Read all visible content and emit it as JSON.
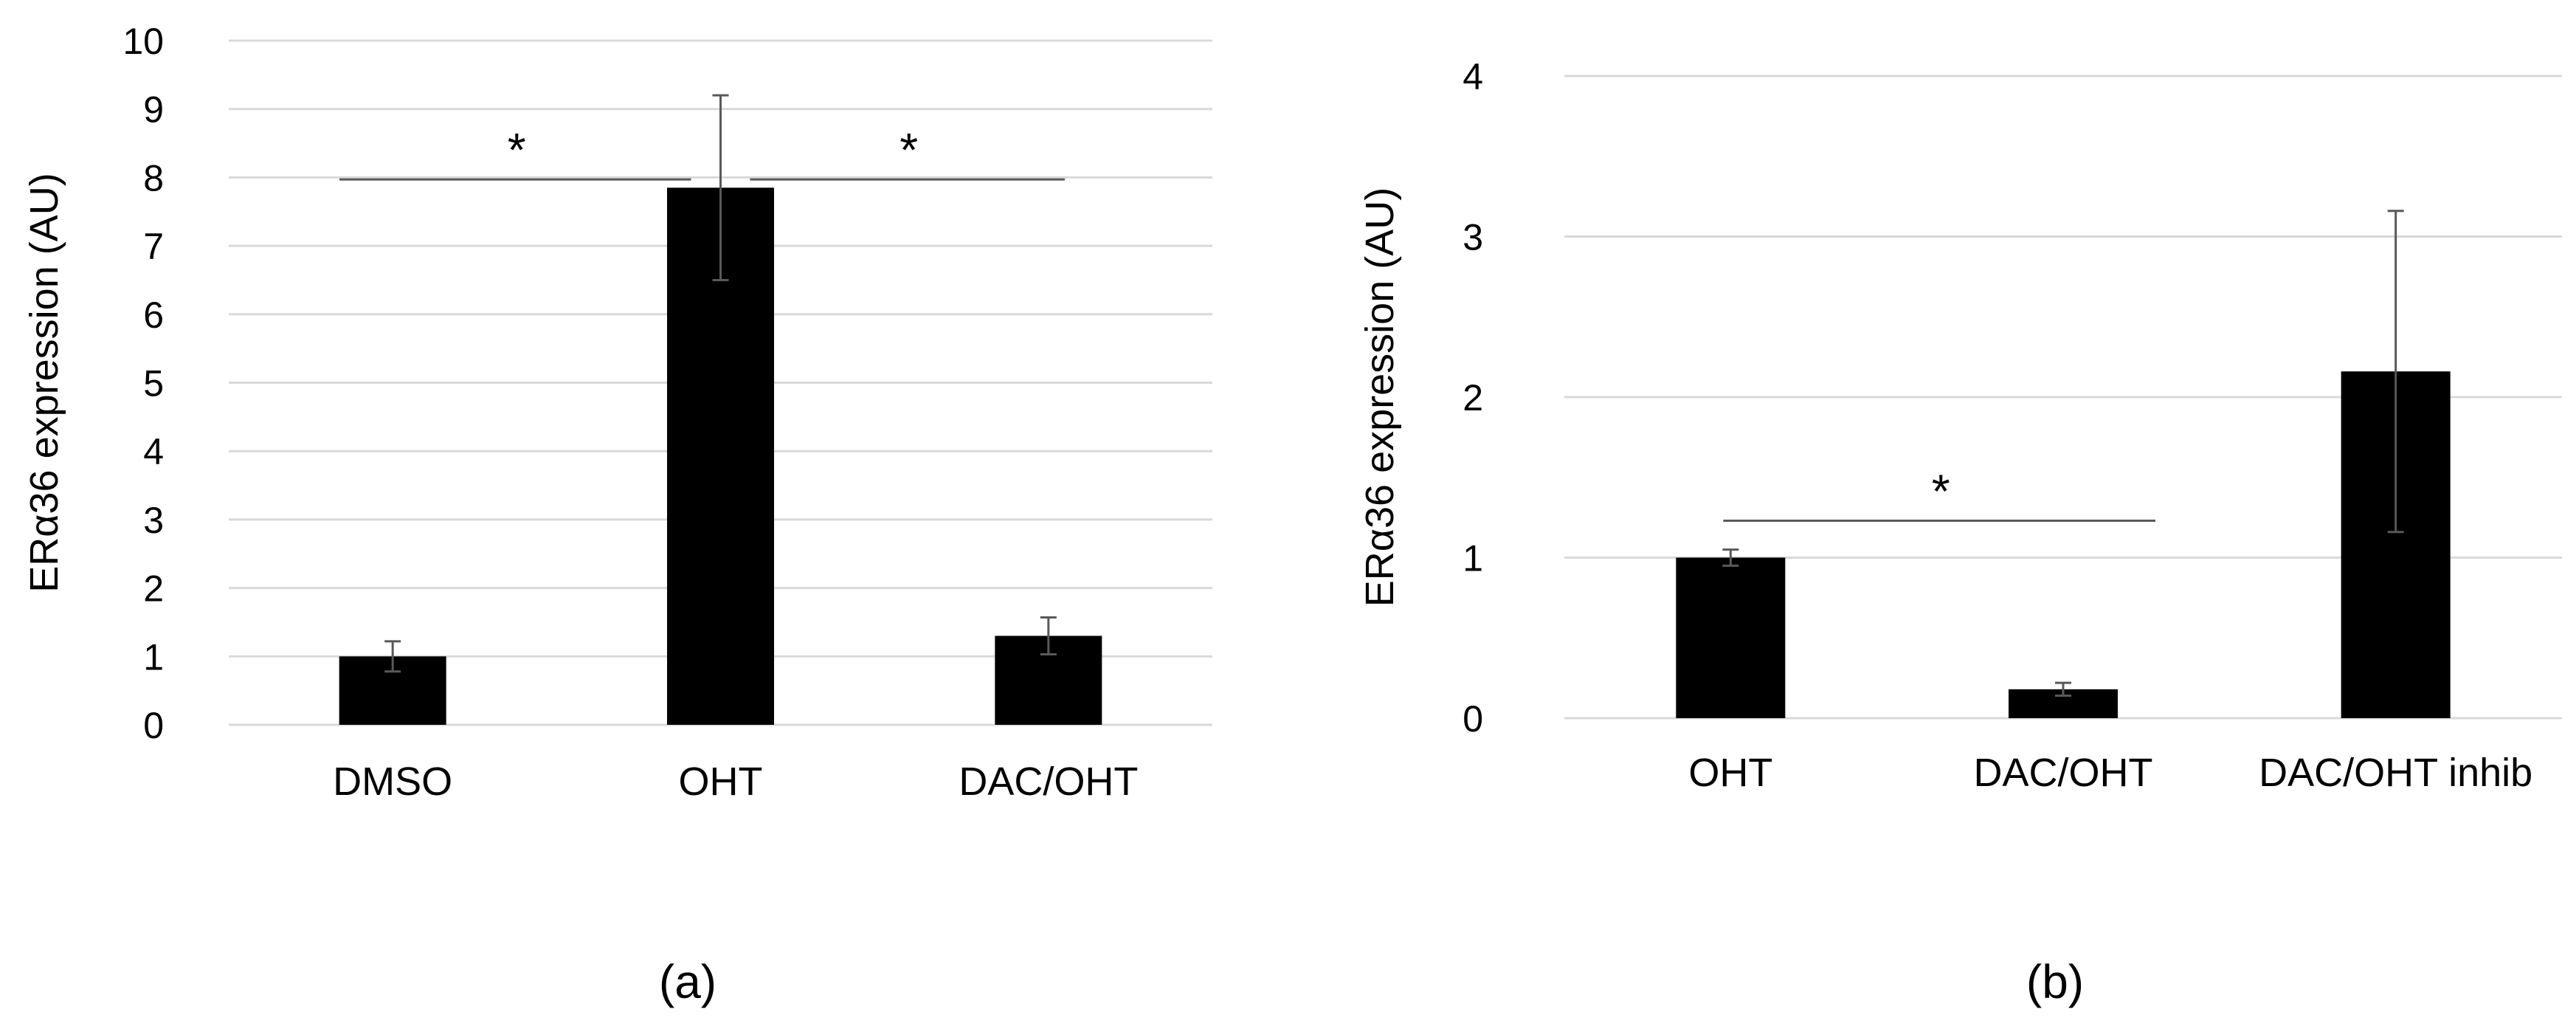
{
  "chart_data": [
    {
      "type": "bar",
      "panel_label": "(a)",
      "ylabel": "ERα36 expression (AU)",
      "xlabel": "",
      "ylim": [
        0,
        10
      ],
      "yticks": [
        0,
        1,
        2,
        3,
        4,
        5,
        6,
        7,
        8,
        9,
        10
      ],
      "grid": true,
      "categories": [
        "DMSO",
        "OHT",
        "DAC/OHT"
      ],
      "values": [
        1.0,
        7.85,
        1.3
      ],
      "errors": [
        0.22,
        1.35,
        0.27
      ],
      "bar_color": "#000000",
      "significance": [
        {
          "from": 0,
          "to": 1,
          "y": 7.97,
          "label": "*"
        },
        {
          "from": 1,
          "to": 2,
          "y": 7.97,
          "label": "*"
        }
      ]
    },
    {
      "type": "bar",
      "panel_label": "(b)",
      "ylabel": "ERα36 expression (AU)",
      "xlabel": "",
      "ylim": [
        0,
        4
      ],
      "yticks": [
        0,
        1,
        2,
        3,
        4
      ],
      "grid": true,
      "categories": [
        "OHT",
        "DAC/OHT",
        "DAC/OHT inhib"
      ],
      "values": [
        1.0,
        0.18,
        2.16
      ],
      "errors": [
        0.05,
        0.04,
        1.0
      ],
      "bar_color": "#000000",
      "significance": [
        {
          "from": 0,
          "to": 1,
          "y": 1.23,
          "label": "*"
        }
      ]
    }
  ]
}
